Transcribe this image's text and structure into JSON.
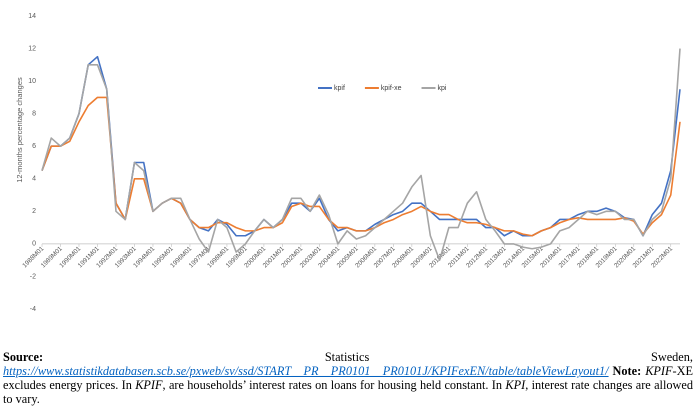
{
  "chart_data": {
    "type": "line",
    "y_label": "12-months percentage changes",
    "categories": [
      "1988M01",
      null,
      "1989M01",
      null,
      "1990M01",
      null,
      "1991M01",
      null,
      "1992M01",
      null,
      "1993M01",
      null,
      "1994M01",
      null,
      "1995M01",
      null,
      "1996M01",
      null,
      "1997M01",
      null,
      "1998M01",
      null,
      "1999M01",
      null,
      "2000M01",
      null,
      "2001M01",
      null,
      "2002M01",
      null,
      "2003M01",
      null,
      "2004M01",
      null,
      "2005M01",
      null,
      "2006M01",
      null,
      "2007M01",
      null,
      "2008M01",
      null,
      "2009M01",
      null,
      "2010M01",
      null,
      "2011M01",
      null,
      "2012M01",
      null,
      "2013M01",
      null,
      "2014M01",
      null,
      "2015M01",
      null,
      "2016M01",
      null,
      "2017M01",
      null,
      "2018M01",
      null,
      "2019M01",
      null,
      "2020M01",
      null,
      "2021M01",
      null,
      "2022M01",
      null
    ],
    "series": [
      {
        "name": "kpif",
        "color": "#4472c4",
        "values": [
          4.5,
          6.0,
          6.0,
          6.5,
          8.0,
          11.0,
          11.5,
          9.5,
          2.5,
          1.5,
          5.0,
          5.0,
          2.0,
          2.5,
          2.8,
          2.5,
          1.5,
          1.0,
          0.8,
          1.5,
          1.2,
          0.5,
          0.5,
          0.8,
          1.5,
          1.0,
          1.5,
          2.5,
          2.5,
          2.0,
          2.8,
          1.5,
          0.8,
          1.0,
          0.8,
          0.8,
          1.2,
          1.5,
          1.8,
          2.0,
          2.5,
          2.5,
          2.0,
          1.5,
          1.5,
          1.5,
          1.5,
          1.5,
          1.0,
          1.0,
          0.5,
          0.8,
          0.5,
          0.5,
          0.8,
          1.0,
          1.5,
          1.5,
          1.8,
          2.0,
          2.0,
          2.2,
          2.0,
          1.6,
          1.5,
          0.5,
          1.8,
          2.5,
          4.5,
          9.5
        ]
      },
      {
        "name": "kpif-xe",
        "color": "#ed7d31",
        "values": [
          4.5,
          6.0,
          6.0,
          6.3,
          7.5,
          8.5,
          9.0,
          9.0,
          2.5,
          1.5,
          4.0,
          4.0,
          2.0,
          2.5,
          2.8,
          2.5,
          1.5,
          1.0,
          1.0,
          1.3,
          1.3,
          1.0,
          0.8,
          0.8,
          1.0,
          1.0,
          1.3,
          2.3,
          2.5,
          2.3,
          2.3,
          1.5,
          1.0,
          1.0,
          0.8,
          0.8,
          1.0,
          1.3,
          1.5,
          1.8,
          2.0,
          2.3,
          2.0,
          1.8,
          1.8,
          1.5,
          1.3,
          1.3,
          1.2,
          1.0,
          0.8,
          0.8,
          0.6,
          0.5,
          0.8,
          1.0,
          1.3,
          1.5,
          1.6,
          1.5,
          1.5,
          1.5,
          1.5,
          1.6,
          1.4,
          0.6,
          1.3,
          1.8,
          3.0,
          7.5
        ]
      },
      {
        "name": "kpi",
        "color": "#a5a5a5",
        "values": [
          4.5,
          6.5,
          6.0,
          6.5,
          8.0,
          11.0,
          11.0,
          9.5,
          2.0,
          1.5,
          5.0,
          4.5,
          2.0,
          2.5,
          2.8,
          2.8,
          1.5,
          0.3,
          -0.5,
          1.5,
          1.0,
          -0.5,
          0.0,
          0.8,
          1.5,
          1.0,
          1.5,
          2.8,
          2.8,
          2.0,
          3.0,
          1.8,
          0.0,
          0.8,
          0.3,
          0.5,
          1.0,
          1.5,
          2.0,
          2.5,
          3.5,
          4.2,
          0.5,
          -1.0,
          1.0,
          1.0,
          2.5,
          3.2,
          1.5,
          0.8,
          0.0,
          0.0,
          -0.2,
          -0.3,
          -0.2,
          0.0,
          0.8,
          1.0,
          1.5,
          2.0,
          1.8,
          2.0,
          2.0,
          1.5,
          1.5,
          0.5,
          1.5,
          2.0,
          4.0,
          12.0
        ]
      }
    ],
    "ylim": [
      -4,
      14
    ],
    "yticks": [
      -4,
      -2,
      0,
      2,
      4,
      6,
      8,
      10,
      12,
      14
    ],
    "grid": false,
    "legend": "top"
  },
  "notes": {
    "source_label": "Source:",
    "source_text": "Statistics Sweden,",
    "url": "https://www.statistikdatabasen.scb.se/pxweb/sv/ssd/START__PR__PR0101__PR0101J/KPIFexEN/table/tableViewLayout1/",
    "note_label": "Note:",
    "note_parts": [
      "KPIF",
      "-XE excludes energy prices. In ",
      "KPIF",
      ", are households’ interest rates on loans for housing held constant.  In ",
      "KPI",
      ", interest rate changes are allowed to vary."
    ]
  }
}
